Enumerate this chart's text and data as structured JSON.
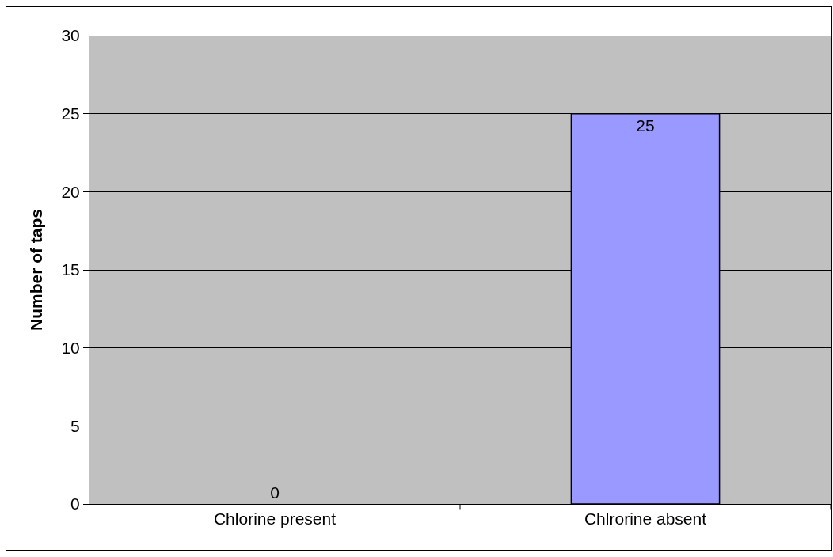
{
  "chart_data": {
    "type": "bar",
    "ylabel": "Number of taps",
    "categories": [
      "Chlorine present",
      "Chlrorine absent"
    ],
    "values": [
      0,
      25
    ],
    "color": "#9999ff",
    "ylim": [
      0,
      30
    ],
    "yticks": [
      0,
      5,
      10,
      15,
      20,
      25,
      30
    ],
    "grid": "y",
    "data_labels": true
  }
}
